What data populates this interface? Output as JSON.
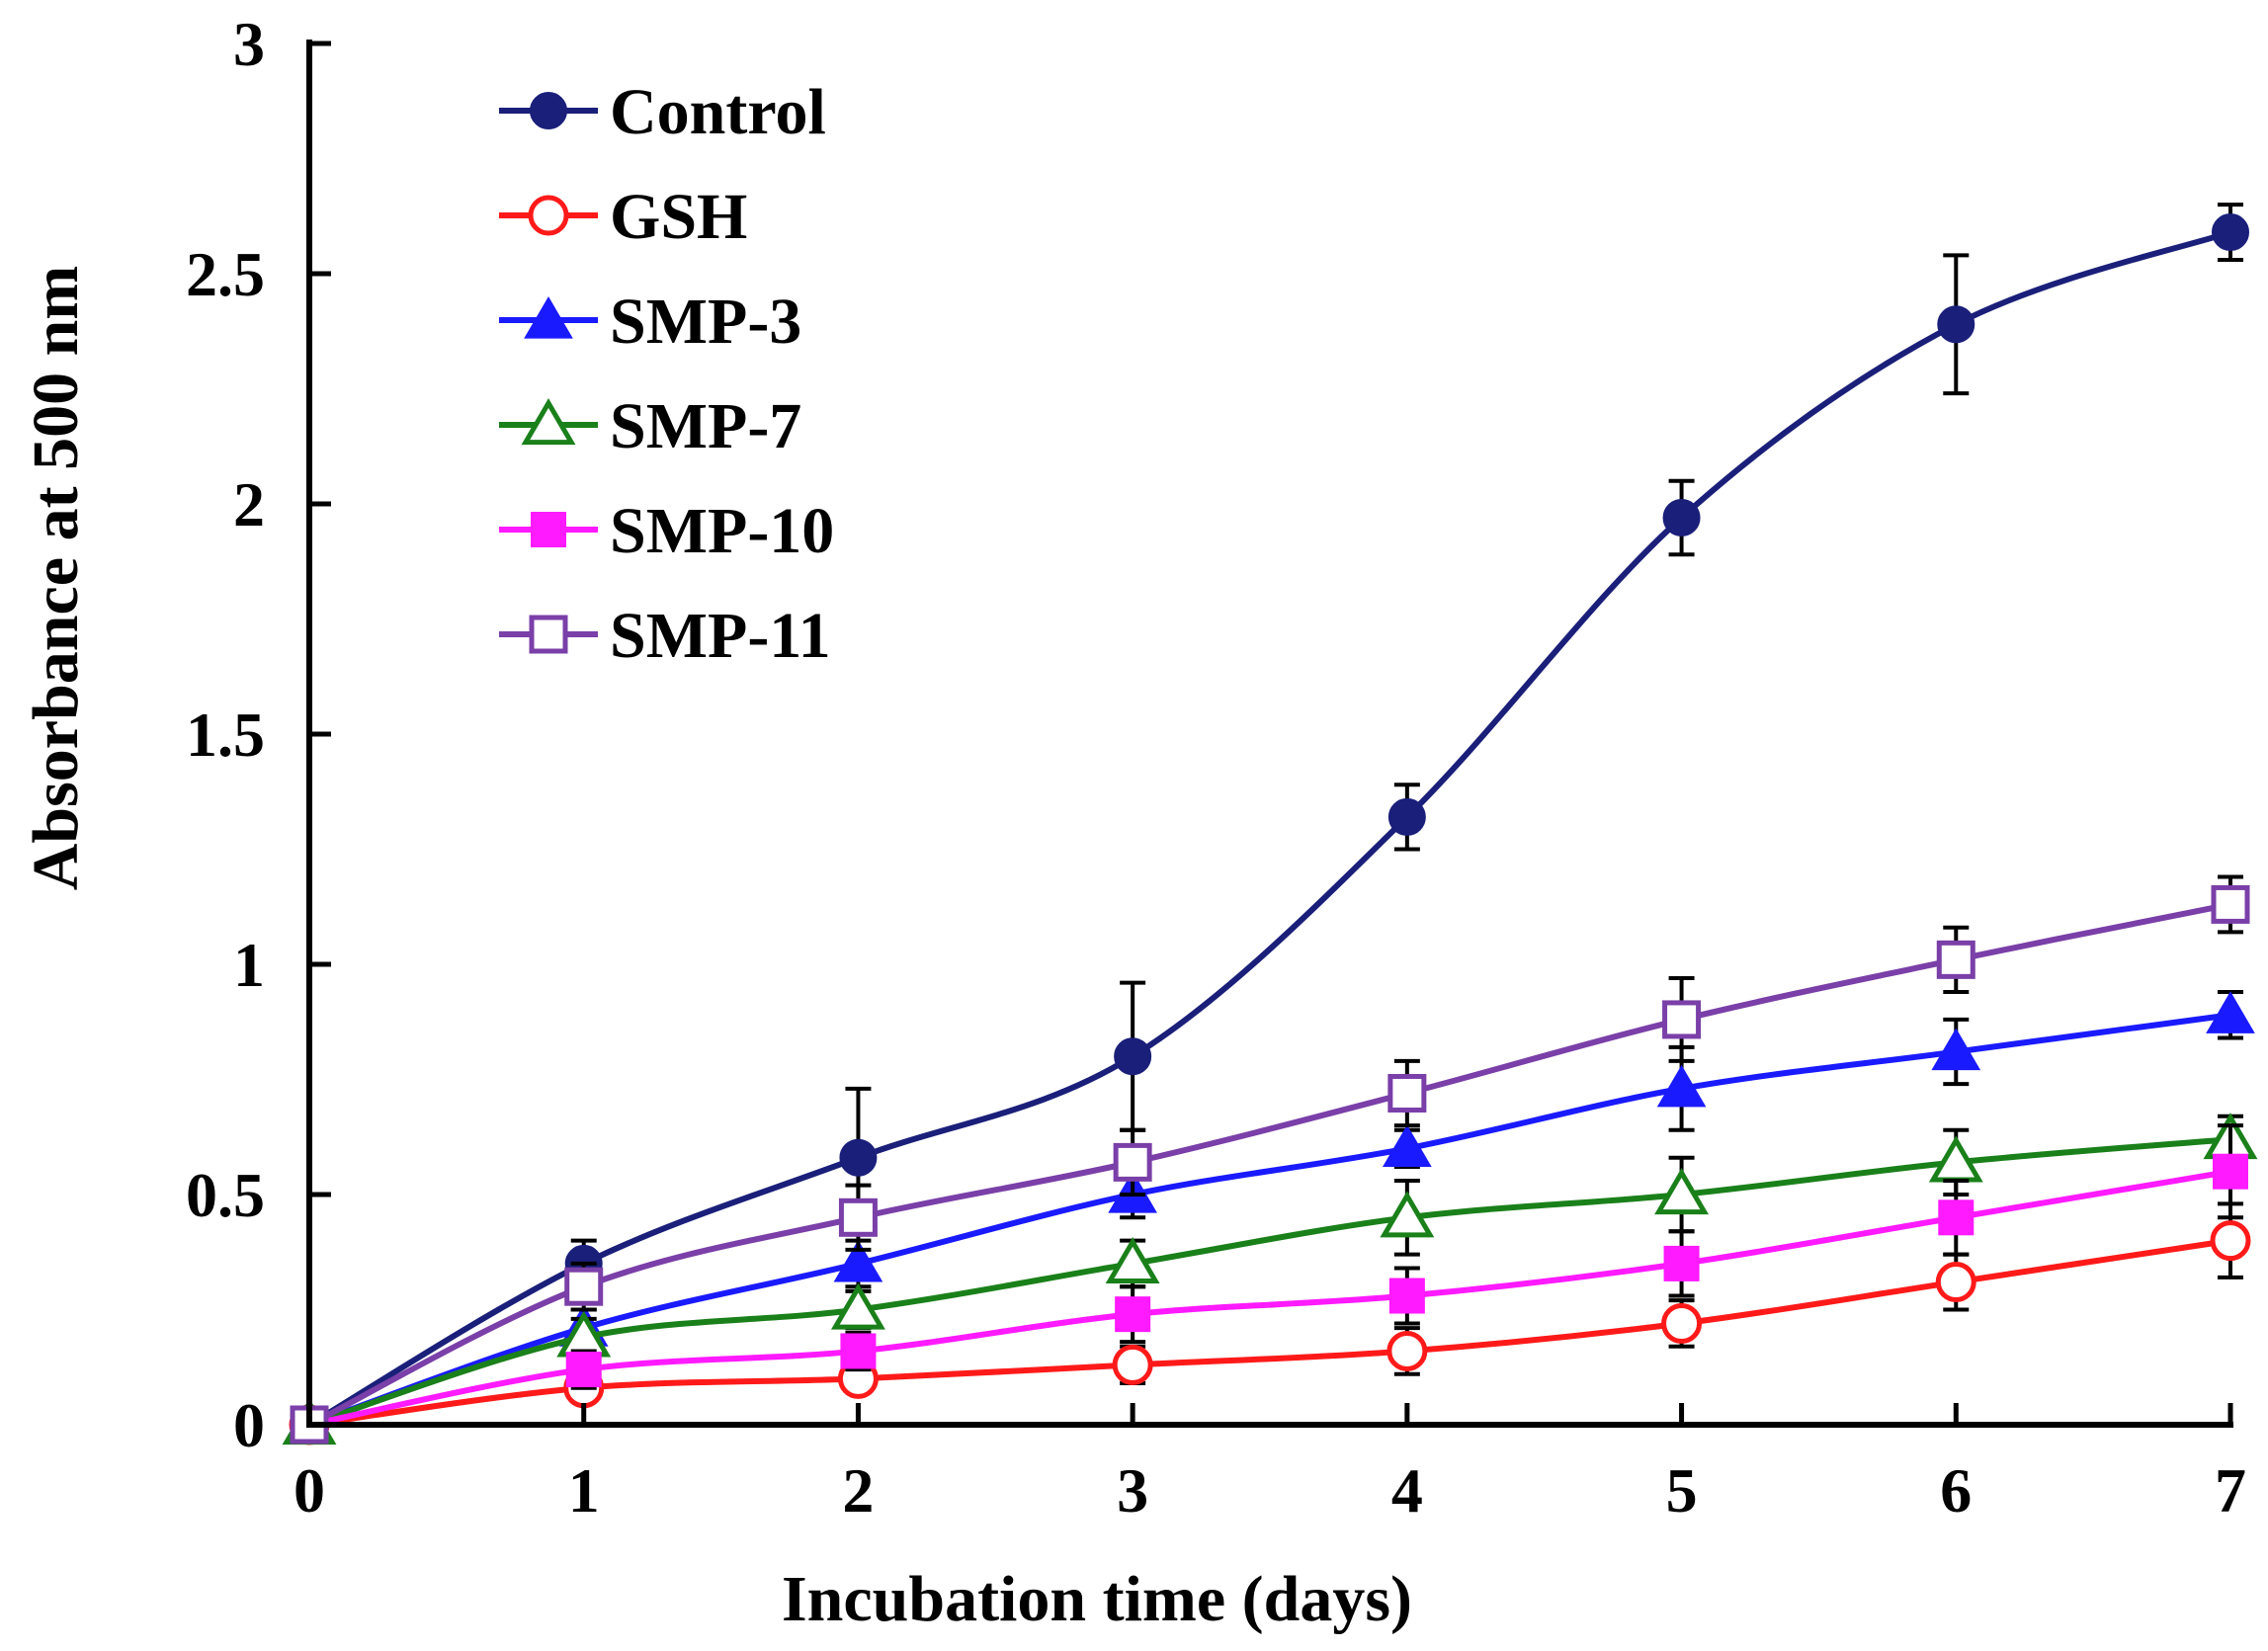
{
  "chart_data": {
    "type": "line",
    "title": "",
    "xlabel": "Incubation time (days)",
    "ylabel": "Absorbance at 500 nm",
    "x": [
      0,
      1,
      2,
      3,
      4,
      5,
      6,
      7
    ],
    "xlim": [
      0,
      7
    ],
    "ylim": [
      0,
      3
    ],
    "xticks": [
      "0",
      "1",
      "2",
      "3",
      "4",
      "5",
      "6",
      "7"
    ],
    "yticks": [
      "0",
      "0.5",
      "1",
      "1.5",
      "2",
      "2.5",
      "3"
    ],
    "legend_position": "top-left",
    "grid": false,
    "series": [
      {
        "name": "Control",
        "color": "#1a1f7a",
        "marker": "circle-filled",
        "values": [
          0,
          0.35,
          0.58,
          0.8,
          1.32,
          1.97,
          2.39,
          2.59
        ],
        "errors": [
          0,
          0.05,
          0.15,
          0.16,
          0.07,
          0.08,
          0.15,
          0.06
        ]
      },
      {
        "name": "GSH",
        "color": "#ff1a1a",
        "marker": "circle-open",
        "values": [
          0,
          0.08,
          0.1,
          0.13,
          0.16,
          0.22,
          0.31,
          0.4
        ],
        "errors": [
          0,
          0.03,
          0.03,
          0.04,
          0.05,
          0.05,
          0.06,
          0.08
        ]
      },
      {
        "name": "SMP-3",
        "color": "#1a1aff",
        "marker": "triangle-filled",
        "values": [
          0,
          0.21,
          0.35,
          0.5,
          0.6,
          0.73,
          0.81,
          0.89
        ],
        "errors": [
          0,
          0.04,
          0.05,
          0.05,
          0.04,
          0.09,
          0.07,
          0.05
        ]
      },
      {
        "name": "SMP-7",
        "color": "#1a801a",
        "marker": "triangle-open",
        "values": [
          0,
          0.19,
          0.25,
          0.35,
          0.45,
          0.5,
          0.57,
          0.62
        ],
        "errors": [
          0,
          0.04,
          0.04,
          0.05,
          0.08,
          0.08,
          0.07,
          0.05
        ]
      },
      {
        "name": "SMP-10",
        "color": "#ff1aff",
        "marker": "square-filled",
        "values": [
          0,
          0.12,
          0.16,
          0.24,
          0.28,
          0.35,
          0.45,
          0.55
        ],
        "errors": [
          0,
          0.04,
          0.04,
          0.06,
          0.06,
          0.07,
          0.08,
          0.1
        ]
      },
      {
        "name": "SMP-11",
        "color": "#7a3fa8",
        "marker": "square-open",
        "values": [
          0,
          0.3,
          0.45,
          0.57,
          0.72,
          0.88,
          1.01,
          1.13
        ],
        "errors": [
          0,
          0.05,
          0.07,
          0.07,
          0.07,
          0.09,
          0.07,
          0.06
        ]
      }
    ]
  }
}
